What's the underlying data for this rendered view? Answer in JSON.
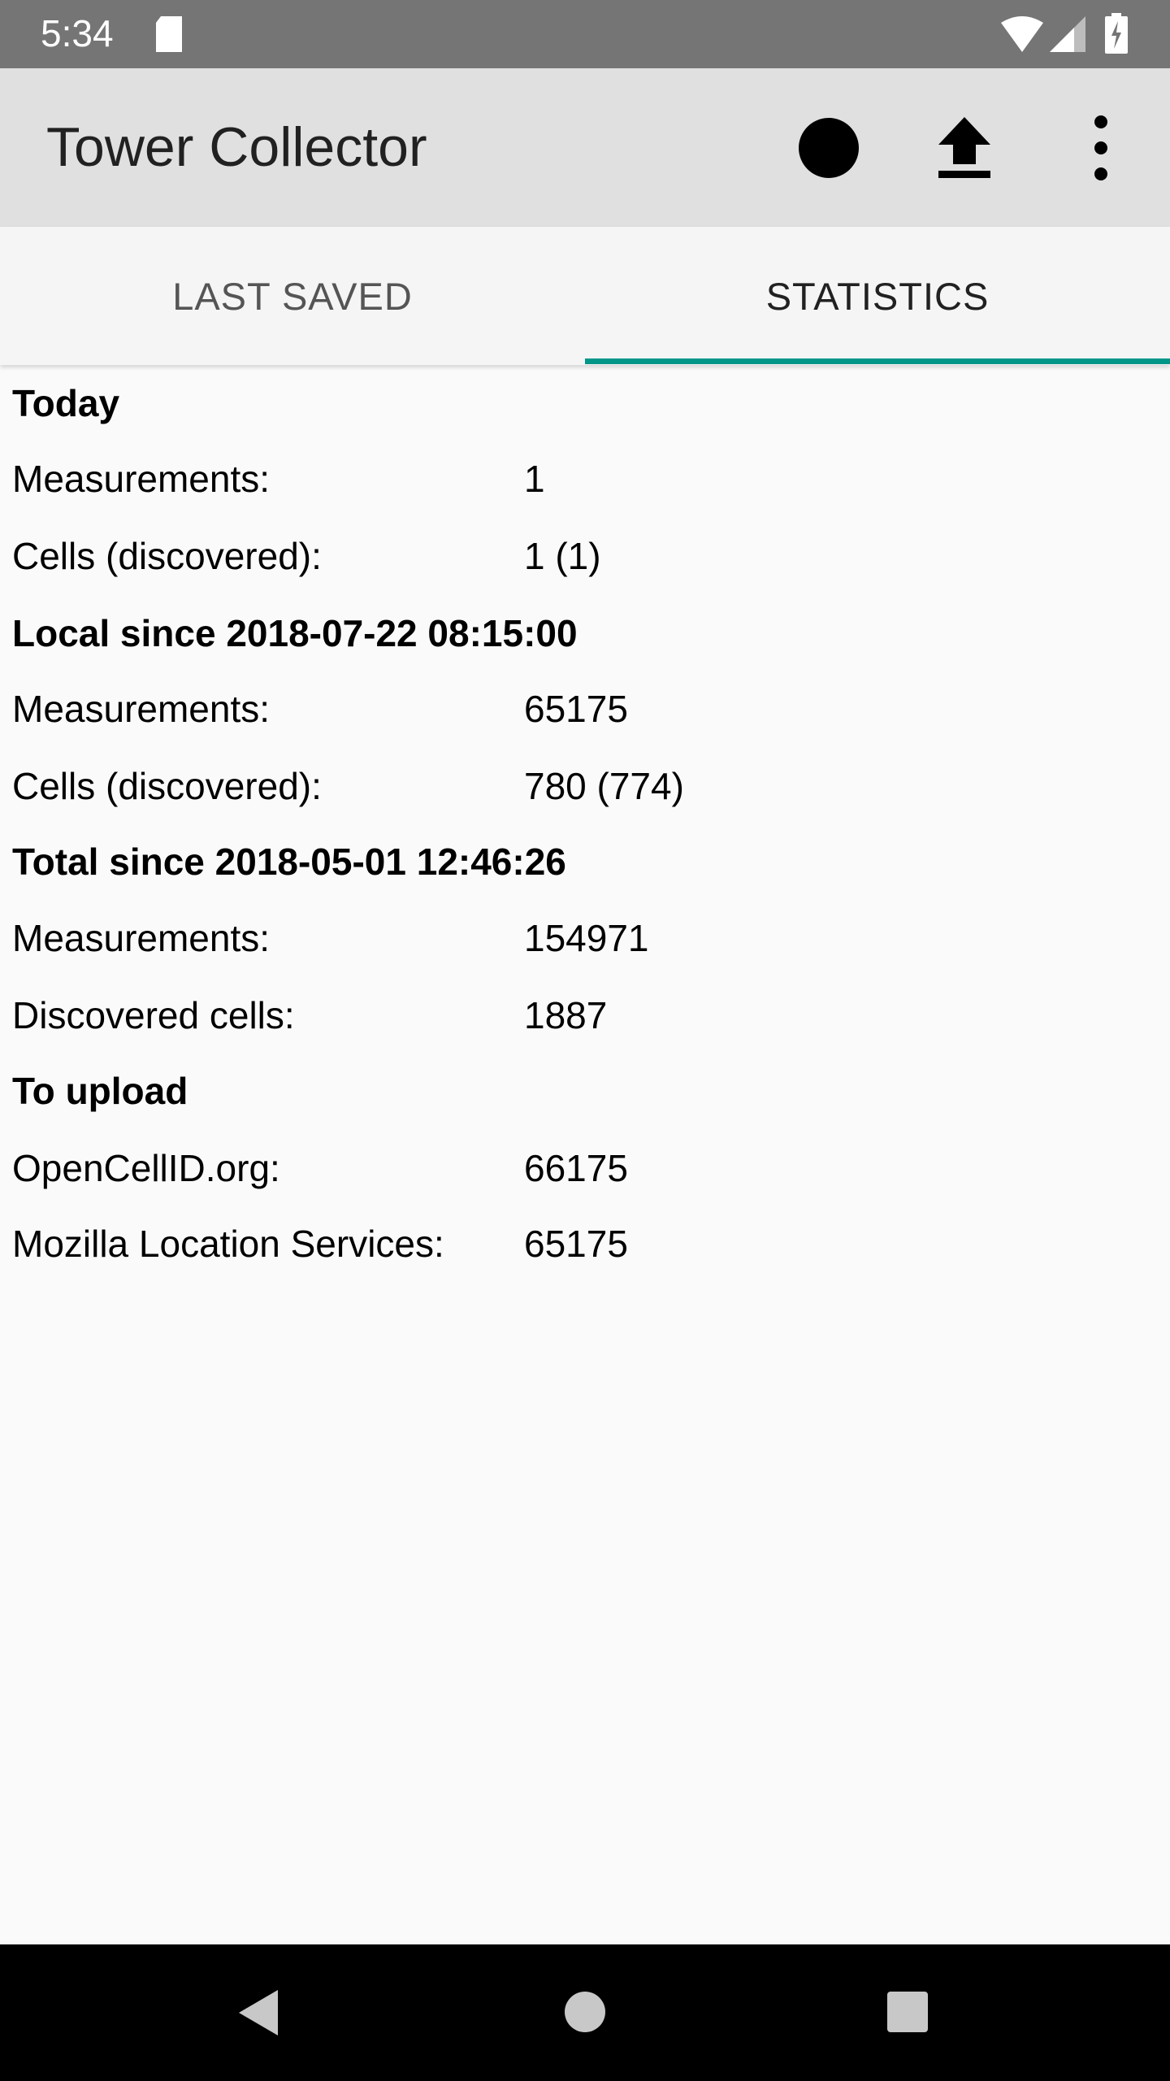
{
  "status_bar": {
    "time": "5:34",
    "icons": [
      "sd-card-icon",
      "wifi-icon",
      "signal-icon",
      "battery-charging-icon"
    ]
  },
  "app_bar": {
    "title": "Tower Collector",
    "actions": [
      "record-icon",
      "upload-icon",
      "more-vert-icon"
    ]
  },
  "tabs": [
    {
      "label": "LAST SAVED",
      "selected": false
    },
    {
      "label": "STATISTICS",
      "selected": true
    }
  ],
  "accent_color": "#009688",
  "stats": {
    "today": {
      "header": "Today",
      "rows": [
        {
          "label": "Measurements:",
          "value": "1"
        },
        {
          "label": "Cells (discovered):",
          "value": "1 (1)"
        }
      ]
    },
    "local": {
      "header": "Local since 2018-07-22 08:15:00",
      "rows": [
        {
          "label": "Measurements:",
          "value": "65175"
        },
        {
          "label": "Cells (discovered):",
          "value": "780 (774)"
        }
      ]
    },
    "total": {
      "header": "Total since 2018-05-01 12:46:26",
      "rows": [
        {
          "label": "Measurements:",
          "value": "154971"
        },
        {
          "label": "Discovered cells:",
          "value": "1887"
        }
      ]
    },
    "upload": {
      "header": "To upload",
      "rows": [
        {
          "label": "OpenCellID.org:",
          "value": "66175"
        },
        {
          "label": "Mozilla Location Services:",
          "value": "65175"
        }
      ]
    }
  },
  "nav_bar": [
    "back-icon",
    "home-icon",
    "recents-icon"
  ]
}
